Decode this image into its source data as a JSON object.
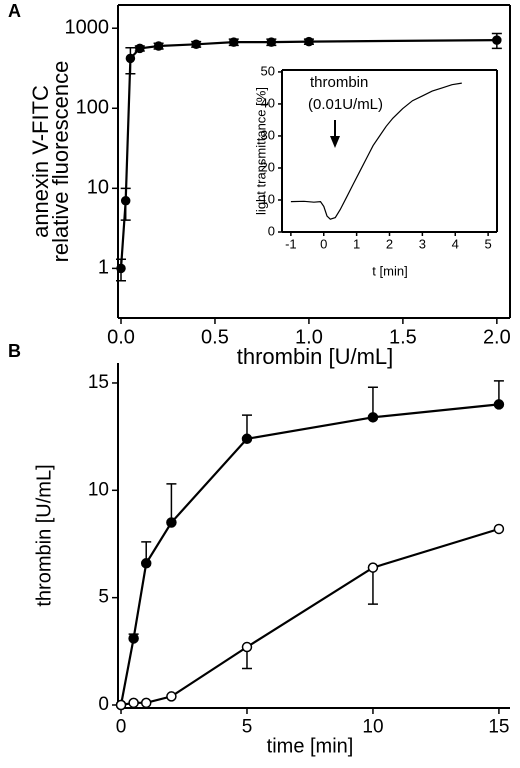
{
  "chart_data": [
    {
      "type": "line",
      "panel": "A",
      "scale": "log",
      "xlabel": "thrombin [U/mL]",
      "ylabel": [
        "annexin V-FITC",
        "relative fluorescence"
      ],
      "xlim": [
        -0.016,
        2.07
      ],
      "ylim": [
        0.24,
        1950
      ],
      "xticks": [
        {
          "value": 0,
          "label": "0.0"
        },
        0.5,
        {
          "value": 1,
          "label": "1.0"
        },
        1.5,
        {
          "value": 2,
          "label": "2.0"
        }
      ],
      "yticks": [
        1,
        10,
        100,
        1000
      ],
      "series": [
        {
          "color": "#000",
          "marker_fill": "#000",
          "error_direction": "both",
          "x": [
            0,
            0.025,
            0.05,
            0.1,
            0.2,
            0.4,
            0.6,
            0.8,
            1.0,
            2.0
          ],
          "values": [
            1,
            7,
            420,
            560,
            600,
            630,
            670,
            670,
            680,
            710
          ],
          "errors": [
            0.3,
            3,
            150,
            40,
            50,
            50,
            60,
            60,
            50,
            150
          ]
        }
      ]
    },
    {
      "type": "line",
      "scale": "linear",
      "xlabel": "t [min]",
      "ylabel": [
        "light transmittance [%]"
      ],
      "annotations": [
        "thrombin",
        "(0.01U/mL)"
      ],
      "xlim": [
        -1.27,
        5.27
      ],
      "ylim": [
        0,
        50.6
      ],
      "xticks": [
        -1,
        0,
        1,
        2,
        3,
        4,
        5
      ],
      "yticks": [
        0,
        10,
        20,
        30,
        40,
        50
      ],
      "series": [
        {
          "color": "#000",
          "x": [
            -1,
            -0.6,
            -0.3,
            -0.1,
            0,
            0.1,
            0.2,
            0.35,
            0.5,
            0.7,
            0.9,
            1.1,
            1.3,
            1.5,
            1.7,
            1.9,
            2.1,
            2.4,
            2.7,
            3.0,
            3.3,
            3.6,
            3.9,
            4.2
          ],
          "values": [
            9.5,
            9.6,
            9.3,
            9.5,
            8,
            5,
            4,
            4.5,
            7,
            11,
            15,
            19,
            23,
            27,
            30,
            33,
            35.5,
            38.5,
            41,
            42.5,
            44,
            45,
            46,
            46.5
          ]
        }
      ]
    },
    {
      "type": "line",
      "panel": "B",
      "scale": "linear",
      "xlabel": "time [min]",
      "ylabel": [
        "thrombin [U/mL]"
      ],
      "xlim": [
        -0.12,
        15.44
      ],
      "ylim": [
        -0.14,
        15.93
      ],
      "xticks": [
        0,
        5,
        10,
        15
      ],
      "yticks": [
        0,
        5,
        10,
        15
      ],
      "series": [
        {
          "color": "#000",
          "marker_fill": "#000",
          "error_direction": "up",
          "x": [
            0,
            0.5,
            1,
            2,
            5,
            10,
            15
          ],
          "values": [
            0,
            3.1,
            6.6,
            8.5,
            12.4,
            13.4,
            14.0
          ],
          "errors": [
            null,
            0.2,
            1.0,
            1.8,
            1.1,
            1.4,
            1.1
          ]
        },
        {
          "color": "#000",
          "marker_fill": "#fff",
          "error_direction": "down",
          "x": [
            0,
            0.5,
            1,
            2,
            5,
            10,
            15
          ],
          "values": [
            0,
            0.1,
            0.1,
            0.4,
            2.7,
            6.4,
            8.2
          ],
          "errors": [
            null,
            null,
            null,
            null,
            1.0,
            1.7,
            null
          ]
        }
      ]
    }
  ]
}
